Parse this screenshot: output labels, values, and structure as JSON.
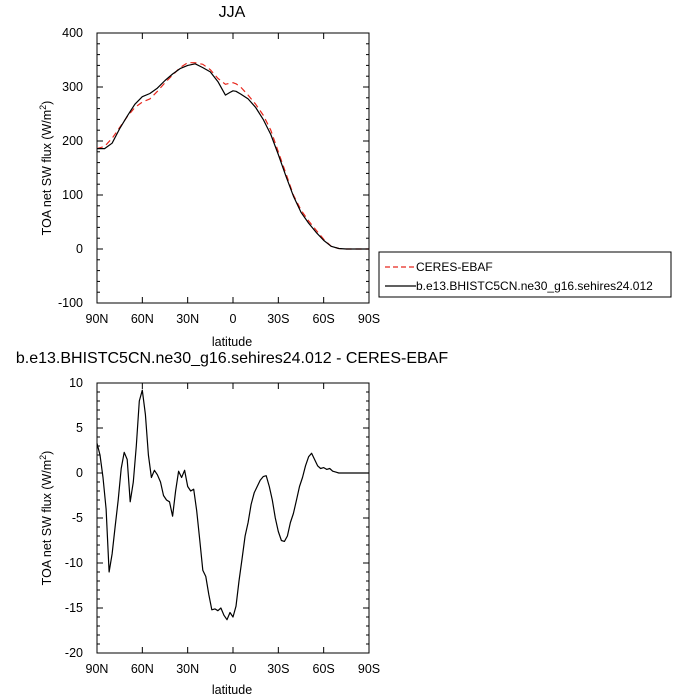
{
  "chart_data": [
    {
      "type": "line",
      "title": "JJA",
      "xlabel": "latitude",
      "ylabel": "TOA net SW flux (W/m",
      "ylabel_sup": "2",
      "ylabel_end": ")",
      "xlim": [
        90,
        -90
      ],
      "ylim": [
        -100,
        400
      ],
      "x_ticks": [
        90,
        60,
        30,
        0,
        -30,
        -60,
        -90
      ],
      "x_tick_labels": [
        "90N",
        "60N",
        "30N",
        "0",
        "30S",
        "60S",
        "90S"
      ],
      "y_ticks": [
        -100,
        0,
        100,
        200,
        300,
        400
      ],
      "y_tick_labels": [
        "-100",
        "0",
        "100",
        "200",
        "300",
        "400"
      ],
      "legend_position": "right",
      "series": [
        {
          "name": "CERES-EBAF",
          "color": "#e8271d",
          "style": "dashed",
          "x": [
            90,
            85,
            80,
            75,
            70,
            65,
            60,
            55,
            50,
            45,
            40,
            35,
            30,
            25,
            20,
            15,
            10,
            5,
            2,
            0,
            -2,
            -5,
            -10,
            -15,
            -20,
            -25,
            -30,
            -35,
            -40,
            -45,
            -50,
            -55,
            -60,
            -65,
            -70,
            -75,
            -80,
            -85,
            -90
          ],
          "y": [
            186,
            190,
            205,
            225,
            245,
            262,
            272,
            278,
            292,
            308,
            322,
            336,
            345,
            345,
            342,
            332,
            316,
            305,
            307,
            308,
            306,
            300,
            285,
            268,
            248,
            220,
            180,
            140,
            100,
            72,
            52,
            35,
            18,
            5,
            1,
            0,
            0,
            0,
            0
          ]
        },
        {
          "name": "b.e13.BHISTC5CN.ne30_g16.sehires24.012",
          "color": "#000000",
          "style": "solid",
          "x": [
            90,
            85,
            80,
            75,
            70,
            65,
            60,
            55,
            50,
            45,
            40,
            35,
            30,
            25,
            20,
            15,
            10,
            5,
            2,
            0,
            -2,
            -5,
            -10,
            -15,
            -20,
            -25,
            -30,
            -35,
            -40,
            -45,
            -50,
            -55,
            -60,
            -65,
            -70,
            -75,
            -80,
            -85,
            -90
          ],
          "y": [
            186,
            186,
            196,
            223,
            246,
            268,
            282,
            288,
            298,
            312,
            324,
            334,
            340,
            343,
            336,
            328,
            310,
            285,
            290,
            293,
            292,
            287,
            278,
            262,
            240,
            212,
            175,
            135,
            98,
            68,
            48,
            31,
            16,
            5,
            1,
            0,
            0,
            0,
            0
          ]
        }
      ]
    },
    {
      "type": "line",
      "title": "b.e13.BHISTC5CN.ne30_g16.sehires24.012 - CERES-EBAF",
      "xlabel": "latitude",
      "ylabel": "TOA net SW flux (W/m",
      "ylabel_sup": "2",
      "ylabel_end": ")",
      "xlim": [
        90,
        -90
      ],
      "ylim": [
        -20,
        10
      ],
      "x_ticks": [
        90,
        60,
        30,
        0,
        -30,
        -60,
        -90
      ],
      "x_tick_labels": [
        "90N",
        "60N",
        "30N",
        "0",
        "30S",
        "60S",
        "90S"
      ],
      "y_ticks": [
        -20,
        -15,
        -10,
        -5,
        0,
        5,
        10
      ],
      "y_tick_labels": [
        "-20",
        "-15",
        "-10",
        "-5",
        "0",
        "5",
        "10"
      ],
      "series": [
        {
          "color": "#000000",
          "style": "solid",
          "x": [
            90,
            88,
            86,
            84,
            82,
            80,
            78,
            76,
            74,
            72,
            70,
            68,
            66,
            64,
            62,
            60,
            58,
            56,
            54,
            52,
            50,
            48,
            46,
            44,
            42,
            40,
            38,
            36,
            34,
            32,
            30,
            28,
            26,
            24,
            22,
            20,
            18,
            16,
            14,
            12,
            10,
            8,
            6,
            4,
            2,
            0,
            -2,
            -4,
            -6,
            -8,
            -10,
            -12,
            -14,
            -16,
            -18,
            -20,
            -22,
            -24,
            -26,
            -28,
            -30,
            -32,
            -34,
            -36,
            -38,
            -40,
            -42,
            -44,
            -46,
            -48,
            -50,
            -52,
            -54,
            -56,
            -58,
            -60,
            -62,
            -64,
            -66,
            -68,
            -70,
            -72,
            -74,
            -76,
            -78,
            -80,
            -82,
            -84,
            -86,
            -88,
            -90
          ],
          "y": [
            3.3,
            2.0,
            -0.5,
            -4.0,
            -11.0,
            -9.0,
            -6.0,
            -3.0,
            0.5,
            2.3,
            1.5,
            -3.2,
            -1.0,
            3.0,
            8.0,
            9.2,
            6.5,
            2.0,
            -0.5,
            0.3,
            -0.2,
            -1.0,
            -2.5,
            -3.0,
            -3.2,
            -4.8,
            -2.0,
            0.2,
            -0.5,
            0.3,
            -1.5,
            -2.0,
            -1.8,
            -4.2,
            -7.5,
            -10.8,
            -11.5,
            -13.5,
            -15.2,
            -15.1,
            -15.3,
            -15.0,
            -15.8,
            -16.3,
            -15.5,
            -16.0,
            -14.8,
            -12.0,
            -9.5,
            -7.0,
            -5.5,
            -3.5,
            -2.2,
            -1.5,
            -0.8,
            -0.4,
            -0.3,
            -1.5,
            -3.0,
            -5.0,
            -6.5,
            -7.5,
            -7.6,
            -7.0,
            -5.5,
            -4.5,
            -3.0,
            -1.5,
            -0.5,
            0.8,
            1.8,
            2.2,
            1.5,
            0.8,
            0.5,
            0.6,
            0.4,
            0.5,
            0.2,
            0.1,
            0.0,
            0.0,
            0.0,
            0.0,
            0.0,
            0.0,
            0.0,
            0.0,
            0.0,
            0.0,
            0.0
          ]
        }
      ]
    }
  ]
}
